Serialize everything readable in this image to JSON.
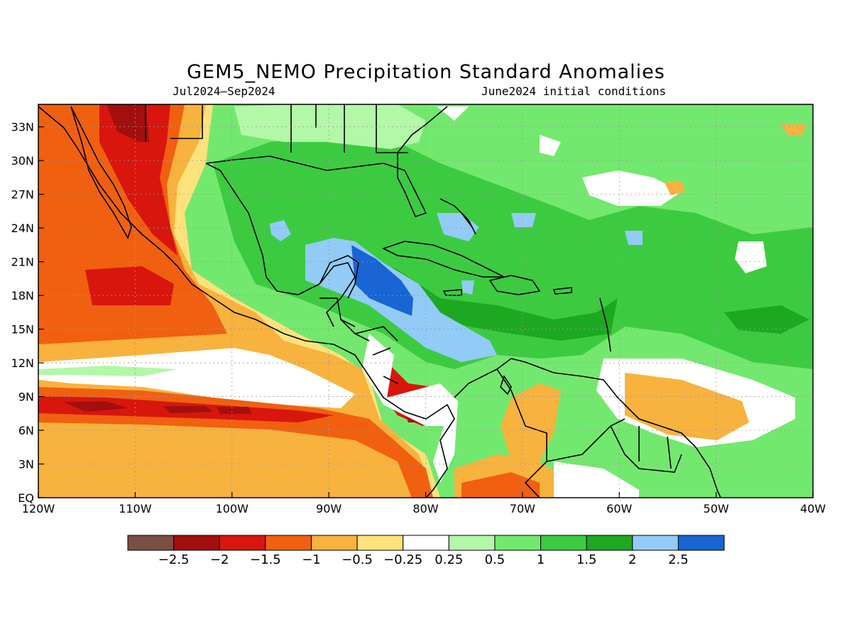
{
  "title": "GEM5_NEMO Precipitation Standard Anomalies",
  "subtitle_left": "Jul2024–Sep2024",
  "subtitle_right": "June2024 initial conditions",
  "map": {
    "lon_range": [
      -120,
      -40
    ],
    "lat_range": [
      0,
      35
    ],
    "lon_ticks": [
      {
        "value": -120,
        "label": "120W"
      },
      {
        "value": -110,
        "label": "110W"
      },
      {
        "value": -100,
        "label": "100W"
      },
      {
        "value": -90,
        "label": "90W"
      },
      {
        "value": -80,
        "label": "80W"
      },
      {
        "value": -70,
        "label": "70W"
      },
      {
        "value": -60,
        "label": "60W"
      },
      {
        "value": -50,
        "label": "50W"
      },
      {
        "value": -40,
        "label": "40W"
      }
    ],
    "lat_ticks": [
      {
        "value": 0,
        "label": "EQ"
      },
      {
        "value": 3,
        "label": "3N"
      },
      {
        "value": 6,
        "label": "6N"
      },
      {
        "value": 9,
        "label": "9N"
      },
      {
        "value": 12,
        "label": "12N"
      },
      {
        "value": 15,
        "label": "15N"
      },
      {
        "value": 18,
        "label": "18N"
      },
      {
        "value": 21,
        "label": "21N"
      },
      {
        "value": 24,
        "label": "24N"
      },
      {
        "value": 27,
        "label": "27N"
      },
      {
        "value": 30,
        "label": "30N"
      },
      {
        "value": 33,
        "label": "33N"
      }
    ],
    "grid": true
  },
  "colorbar": {
    "colors": [
      "#7a4f43",
      "#a30f0f",
      "#d8160e",
      "#f06010",
      "#f8b23e",
      "#fde27c",
      "#ffffff",
      "#b3f7a8",
      "#73e86e",
      "#3ccb40",
      "#1da822",
      "#92cbf6",
      "#1865d3"
    ],
    "labels": [
      "-2.5",
      "-2",
      "-1.5",
      "-1",
      "-0.5",
      "-0.25",
      "0.25",
      "0.5",
      "1",
      "1.5",
      "2",
      "2.5"
    ]
  }
}
